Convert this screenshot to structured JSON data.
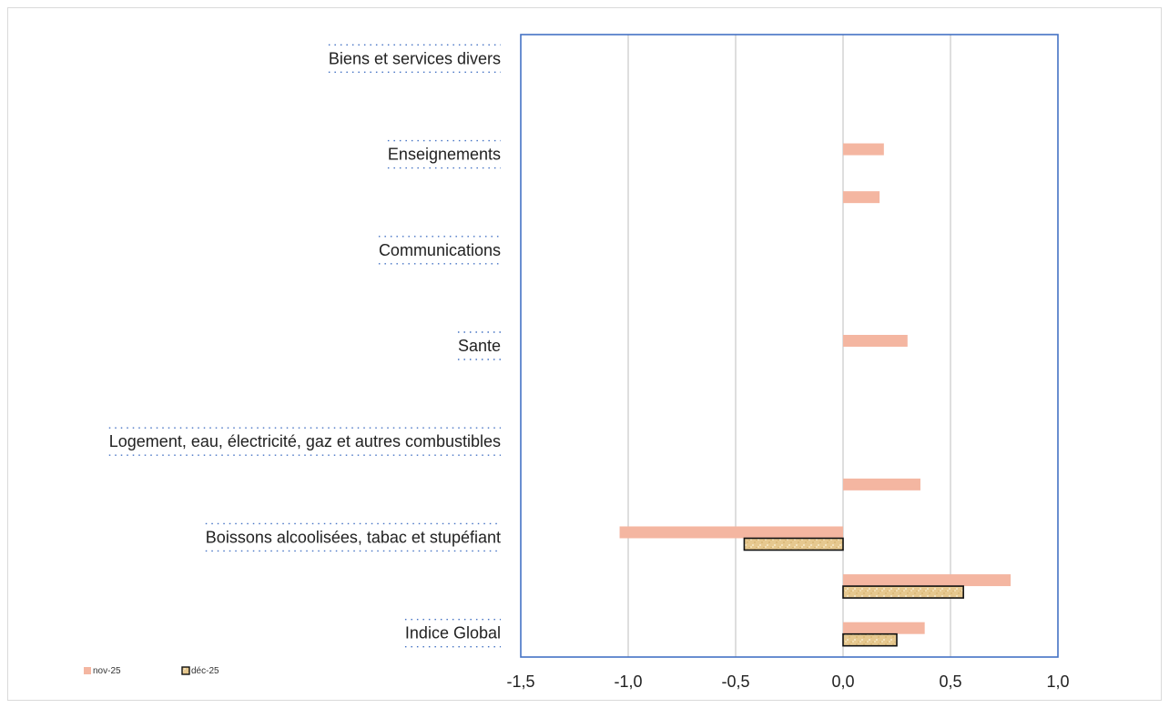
{
  "chart_data": {
    "type": "bar",
    "orientation": "horizontal",
    "categories": [
      "Indice Global",
      "",
      "Boissons alcoolisées, tabac et stupéfiant",
      "",
      "Logement, eau, électricité, gaz et autres combustibles",
      "",
      "Sante",
      "",
      "Communications",
      "",
      "Enseignements",
      "",
      "Biens et services divers"
    ],
    "series": [
      {
        "name": "nov-25",
        "color": "#f4b6a1",
        "values": [
          0.38,
          0.78,
          -1.04,
          0.36,
          0.0,
          0.0,
          0.3,
          0.0,
          0.0,
          0.17,
          0.19,
          0.0,
          0.0
        ]
      },
      {
        "name": "déc-25",
        "color": "#e8cc95",
        "values": [
          0.25,
          0.56,
          -0.46,
          0.0,
          0.0,
          0.0,
          0.0,
          0.0,
          0.0,
          0.0,
          0.0,
          0.0,
          0.0
        ]
      }
    ],
    "xlim": [
      -1.5,
      1.0
    ],
    "xticks": [
      "-1,5",
      "-1,0",
      "-0,5",
      "0,0",
      "0,5",
      "1,0"
    ],
    "xtick_values": [
      -1.5,
      -1.0,
      -0.5,
      0.0,
      0.5,
      1.0
    ],
    "grid": "vertical",
    "legend_position": "bottom-left",
    "plot_border_color": "#4472c4"
  }
}
